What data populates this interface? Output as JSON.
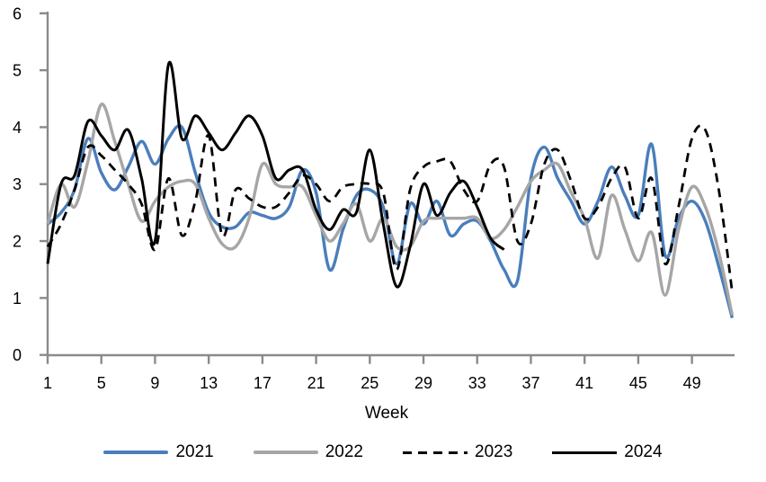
{
  "chart_data": {
    "type": "line",
    "title": "",
    "xlabel": "Week",
    "ylabel": "",
    "x_unit": "week_number",
    "x": [
      1,
      2,
      3,
      4,
      5,
      6,
      7,
      8,
      9,
      10,
      11,
      12,
      13,
      14,
      15,
      16,
      17,
      18,
      19,
      20,
      21,
      22,
      23,
      24,
      25,
      26,
      27,
      28,
      29,
      30,
      31,
      32,
      33,
      34,
      35,
      36,
      37,
      38,
      39,
      40,
      41,
      42,
      43,
      44,
      45,
      46,
      47,
      48,
      49,
      50,
      51,
      52
    ],
    "x_ticks": [
      1,
      5,
      9,
      13,
      17,
      21,
      25,
      29,
      33,
      37,
      41,
      45,
      49
    ],
    "y_ticks": [
      0,
      1,
      2,
      3,
      4,
      5,
      6
    ],
    "ylim": [
      0,
      6
    ],
    "xlim": [
      1,
      52.2
    ],
    "grid": false,
    "legend_position": "bottom",
    "line_smoothing": true,
    "axis_color": "#8A8A8A",
    "text_color": "#000000",
    "series": [
      {
        "name": "2021",
        "color": "#4A7EBB",
        "style": "solid",
        "values": [
          2.3,
          2.5,
          2.9,
          3.8,
          3.2,
          2.9,
          3.3,
          3.75,
          3.35,
          3.8,
          4.0,
          3.2,
          2.5,
          2.25,
          2.25,
          2.5,
          2.45,
          2.4,
          2.6,
          3.25,
          2.85,
          1.5,
          2.2,
          2.8,
          2.9,
          2.6,
          1.6,
          2.65,
          2.3,
          2.7,
          2.1,
          2.3,
          2.35,
          2.0,
          1.5,
          1.3,
          3.1,
          3.65,
          3.1,
          2.7,
          2.3,
          2.7,
          3.3,
          2.8,
          2.45,
          3.7,
          1.75,
          2.4,
          2.7,
          2.35,
          1.55,
          0.65
        ]
      },
      {
        "name": "2022",
        "color": "#A6A6A6",
        "style": "solid",
        "values": [
          2.3,
          3.0,
          2.6,
          3.4,
          4.4,
          3.75,
          3.0,
          2.35,
          2.7,
          2.95,
          3.05,
          3.0,
          2.4,
          1.95,
          1.9,
          2.4,
          3.35,
          3.0,
          2.95,
          2.95,
          2.45,
          2.0,
          2.3,
          2.65,
          2.0,
          2.4,
          1.9,
          1.9,
          2.35,
          2.4,
          2.4,
          2.4,
          2.4,
          2.05,
          2.2,
          2.6,
          3.05,
          3.25,
          3.35,
          2.85,
          2.4,
          1.7,
          2.8,
          2.2,
          1.65,
          2.15,
          1.05,
          2.2,
          2.95,
          2.6,
          1.8,
          0.7
        ]
      },
      {
        "name": "2023",
        "color": "#000000",
        "style": "dashed",
        "values": [
          1.9,
          2.3,
          2.9,
          3.65,
          3.5,
          3.25,
          3.0,
          2.65,
          1.85,
          3.1,
          2.1,
          2.7,
          3.85,
          2.1,
          2.9,
          2.75,
          2.6,
          2.6,
          2.85,
          3.15,
          3.0,
          2.7,
          2.95,
          3.0,
          3.0,
          2.85,
          1.5,
          2.9,
          3.3,
          3.4,
          3.4,
          2.9,
          2.7,
          3.35,
          3.3,
          2.0,
          2.3,
          3.35,
          3.6,
          3.05,
          2.4,
          2.6,
          3.1,
          3.3,
          2.4,
          3.1,
          1.6,
          2.6,
          3.8,
          3.95,
          2.9,
          1.1
        ]
      },
      {
        "name": "2024",
        "color": "#000000",
        "style": "solid",
        "values": [
          1.6,
          3.0,
          3.15,
          4.1,
          3.85,
          3.6,
          3.95,
          3.1,
          2.0,
          5.1,
          3.8,
          4.2,
          3.9,
          3.6,
          3.9,
          4.2,
          3.85,
          3.1,
          3.25,
          3.25,
          2.55,
          2.2,
          2.55,
          2.5,
          3.6,
          2.3,
          1.2,
          1.9,
          3.0,
          2.45,
          2.85,
          3.05,
          2.6,
          2.05,
          1.85,
          null,
          null,
          null,
          null,
          null,
          null,
          null,
          null,
          null,
          null,
          null,
          null,
          null,
          null,
          null,
          null,
          null
        ]
      }
    ]
  }
}
